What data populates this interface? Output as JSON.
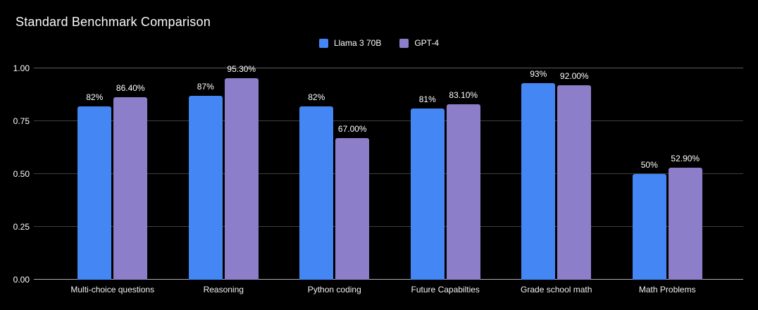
{
  "chart_data": {
    "type": "bar",
    "title": "Standard Benchmark Comparison",
    "categories": [
      "Multi-choice questions",
      "Reasoning",
      "Python coding",
      "Future Capabilties",
      "Grade school math",
      "Math Problems"
    ],
    "series": [
      {
        "name": "Llama 3 70B",
        "color": "#4486f3",
        "values": [
          0.82,
          0.87,
          0.82,
          0.81,
          0.93,
          0.5
        ],
        "labels": [
          "82%",
          "87%",
          "82%",
          "81%",
          "93%",
          "50%"
        ]
      },
      {
        "name": "GPT-4",
        "color": "#8d7ec9",
        "values": [
          0.864,
          0.953,
          0.67,
          0.831,
          0.92,
          0.529
        ],
        "labels": [
          "86.40%",
          "95.30%",
          "67.00%",
          "83.10%",
          "92.00%",
          "52.90%"
        ]
      }
    ],
    "xlabel": "",
    "ylabel": "",
    "ylim": [
      0,
      1
    ],
    "yticks": [
      "0.00",
      "0.25",
      "0.50",
      "0.75",
      "1.00"
    ],
    "grid": true,
    "legend_position": "top-center"
  },
  "palette": {
    "background": "#000000",
    "title_text": "#fafafa",
    "tick_text": "#ffffff",
    "grid_mid": "#3f3f3f",
    "grid_top": "#5f5f5f",
    "axis_baseline": "#b0b0b0",
    "series_blue": "#4486f3",
    "series_purple": "#8d7ec9"
  }
}
